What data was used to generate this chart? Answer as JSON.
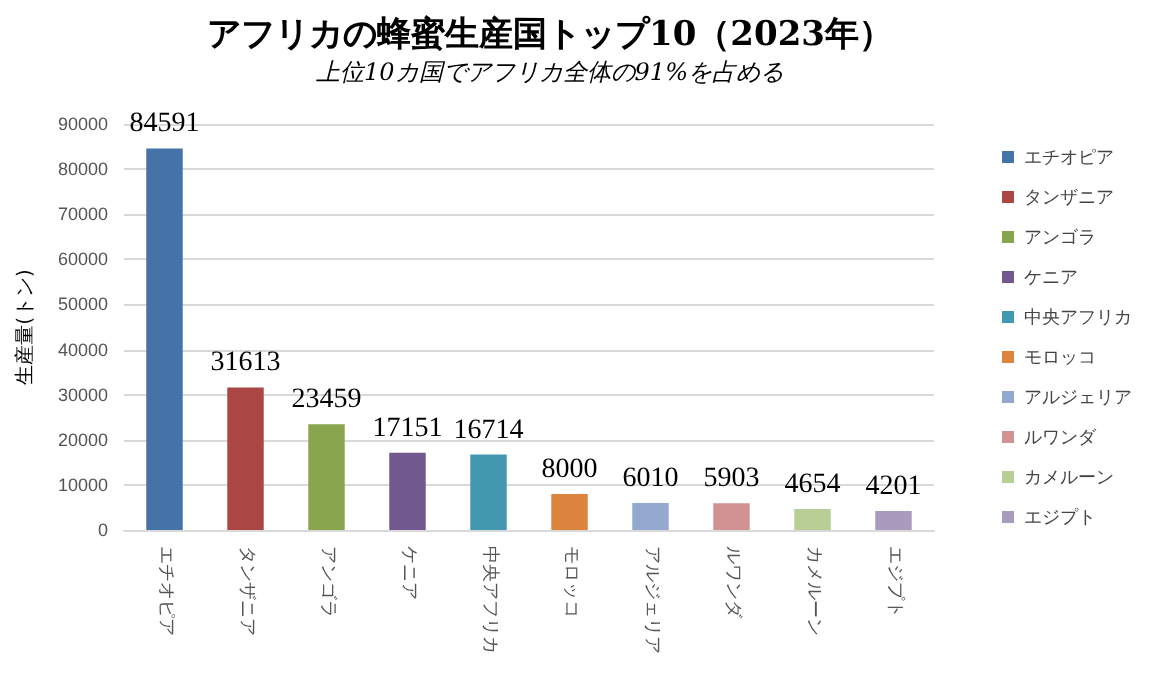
{
  "chart_data": {
    "type": "bar",
    "title": "アフリカの蜂蜜生産国トップ10（2023年）",
    "subtitle": "上位10カ国でアフリカ全体の91%を占める",
    "ylabel": "生産量(トン)",
    "categories": [
      "エチオピア",
      "タンザニア",
      "アンゴラ",
      "ケニア",
      "中央アフリカ",
      "モロッコ",
      "アルジェリア",
      "ルワンダ",
      "カメルーン",
      "エジプト"
    ],
    "series": [
      {
        "name": "エチオピア",
        "color": "#4572a7",
        "values": [
          84591,
          null,
          null,
          null,
          null,
          null,
          null,
          null,
          null,
          null
        ]
      },
      {
        "name": "タンザニア",
        "color": "#aa4643",
        "values": [
          null,
          31613,
          null,
          null,
          null,
          null,
          null,
          null,
          null,
          null
        ]
      },
      {
        "name": "アンゴラ",
        "color": "#89a54e",
        "values": [
          null,
          null,
          23459,
          null,
          null,
          null,
          null,
          null,
          null,
          null
        ]
      },
      {
        "name": "ケニア",
        "color": "#71588f",
        "values": [
          null,
          null,
          null,
          17151,
          null,
          null,
          null,
          null,
          null,
          null
        ]
      },
      {
        "name": "中央アフリカ",
        "color": "#4198af",
        "values": [
          null,
          null,
          null,
          null,
          16714,
          null,
          null,
          null,
          null,
          null
        ]
      },
      {
        "name": "モロッコ",
        "color": "#db843d",
        "values": [
          null,
          null,
          null,
          null,
          null,
          8000,
          null,
          null,
          null,
          null
        ]
      },
      {
        "name": "アルジェリア",
        "color": "#93a9cf",
        "values": [
          null,
          null,
          null,
          null,
          null,
          null,
          6010,
          null,
          null,
          null
        ]
      },
      {
        "name": "ルワンダ",
        "color": "#d19392",
        "values": [
          null,
          null,
          null,
          null,
          null,
          null,
          null,
          5903,
          null,
          null
        ]
      },
      {
        "name": "カメルーン",
        "color": "#b9cd96",
        "values": [
          null,
          null,
          null,
          null,
          null,
          null,
          null,
          null,
          4654,
          null
        ]
      },
      {
        "name": "エジプト",
        "color": "#a99bbd",
        "values": [
          null,
          null,
          null,
          null,
          null,
          null,
          null,
          null,
          null,
          4201
        ]
      }
    ],
    "stacked": true,
    "ylim": [
      0,
      90000
    ],
    "yticks": [
      0,
      10000,
      20000,
      30000,
      40000,
      50000,
      60000,
      70000,
      80000,
      90000
    ],
    "grid": "y",
    "legend": "right",
    "data_labels": true
  }
}
